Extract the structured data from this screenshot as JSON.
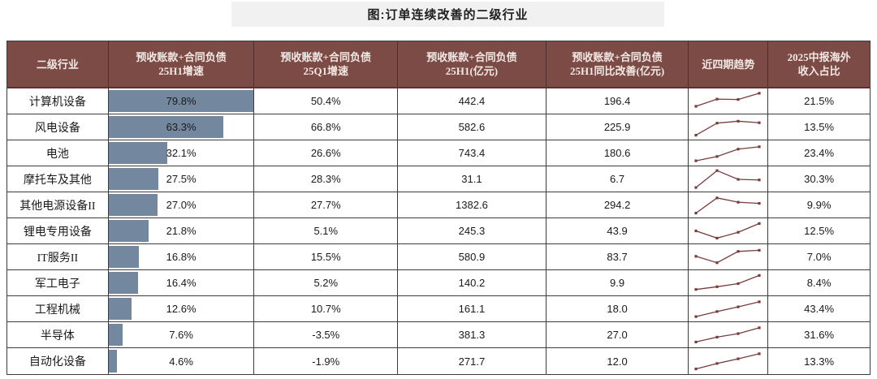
{
  "title": "图:订单连续改善的二级行业",
  "colors": {
    "header_bg": "#7d4b46",
    "header_text": "#f2e8e4",
    "bar_fill": "#73879e",
    "sparkline": "#793c3c",
    "title_bg": "#f1f1f1",
    "border": "#3c3c3c"
  },
  "table": {
    "bar_max": 79.8,
    "columns": [
      {
        "lines": [
          "二级行业"
        ]
      },
      {
        "lines": [
          "预收账款+合同负债",
          "25H1增速"
        ]
      },
      {
        "lines": [
          "预收账款+合同负债",
          "25Q1增速"
        ]
      },
      {
        "lines": [
          "预收账款+合同负债",
          "25H1(亿元)"
        ]
      },
      {
        "lines": [
          "预收账款+合同负债",
          "25H1同比改善(亿元)"
        ]
      },
      {
        "lines": [
          "近四期趋势"
        ]
      },
      {
        "lines": [
          "2025中报海外",
          "收入占比"
        ]
      }
    ],
    "rows": [
      {
        "industry": "计算机设备",
        "h1_growth": "79.8%",
        "h1_growth_value": 79.8,
        "q1_growth": "50.4%",
        "h1_amount": "442.4",
        "improvement": "196.4",
        "overseas": "21.5%",
        "trend": [
          0.25,
          0.62,
          0.6,
          0.92
        ]
      },
      {
        "industry": "风电设备",
        "h1_growth": "63.3%",
        "h1_growth_value": 63.3,
        "q1_growth": "66.8%",
        "h1_amount": "582.6",
        "improvement": "225.9",
        "overseas": "13.5%",
        "trend": [
          0.1,
          0.72,
          0.82,
          0.74
        ]
      },
      {
        "industry": "电池",
        "h1_growth": "32.1%",
        "h1_growth_value": 32.1,
        "q1_growth": "26.6%",
        "h1_amount": "743.4",
        "improvement": "180.6",
        "overseas": "23.4%",
        "trend": [
          0.12,
          0.34,
          0.72,
          0.84
        ]
      },
      {
        "industry": "摩托车及其他",
        "h1_growth": "27.5%",
        "h1_growth_value": 27.5,
        "q1_growth": "28.3%",
        "h1_amount": "31.1",
        "improvement": "6.7",
        "overseas": "30.3%",
        "trend": [
          0.08,
          0.95,
          0.5,
          0.47
        ]
      },
      {
        "industry": "其他电源设备II",
        "h1_growth": "27.0%",
        "h1_growth_value": 27.0,
        "q1_growth": "27.7%",
        "h1_amount": "1382.6",
        "improvement": "294.2",
        "overseas": "9.9%",
        "trend": [
          0.1,
          0.88,
          0.66,
          0.6
        ]
      },
      {
        "industry": "锂电专用设备",
        "h1_growth": "21.8%",
        "h1_growth_value": 21.8,
        "q1_growth": "5.1%",
        "h1_amount": "245.3",
        "improvement": "43.9",
        "overseas": "12.5%",
        "trend": [
          0.52,
          0.15,
          0.45,
          0.9
        ]
      },
      {
        "industry": "IT服务II",
        "h1_growth": "16.8%",
        "h1_growth_value": 16.8,
        "q1_growth": "15.5%",
        "h1_amount": "580.9",
        "improvement": "83.7",
        "overseas": "7.0%",
        "trend": [
          0.55,
          0.22,
          0.8,
          0.86
        ]
      },
      {
        "industry": "军工电子",
        "h1_growth": "16.4%",
        "h1_growth_value": 16.4,
        "q1_growth": "5.2%",
        "h1_amount": "140.2",
        "improvement": "9.9",
        "overseas": "8.4%",
        "trend": [
          0.18,
          0.32,
          0.48,
          0.9
        ]
      },
      {
        "industry": "工程机械",
        "h1_growth": "12.6%",
        "h1_growth_value": 12.6,
        "q1_growth": "10.7%",
        "h1_amount": "161.1",
        "improvement": "18.0",
        "overseas": "43.4%",
        "trend": [
          0.12,
          0.38,
          0.62,
          0.88
        ]
      },
      {
        "industry": "半导体",
        "h1_growth": "7.6%",
        "h1_growth_value": 7.6,
        "q1_growth": "-3.5%",
        "h1_amount": "381.3",
        "improvement": "27.0",
        "overseas": "31.6%",
        "trend": [
          0.15,
          0.4,
          0.58,
          0.88
        ]
      },
      {
        "industry": "自动化设备",
        "h1_growth": "4.6%",
        "h1_growth_value": 4.6,
        "q1_growth": "-1.9%",
        "h1_amount": "271.7",
        "improvement": "12.0",
        "overseas": "13.3%",
        "trend": [
          0.1,
          0.38,
          0.62,
          0.88
        ]
      }
    ]
  },
  "chart_data": {
    "type": "table",
    "title": "图:订单连续改善的二级行业",
    "columns": [
      "二级行业",
      "预收账款+合同负债25H1增速",
      "预收账款+合同负债25Q1增速",
      "预收账款+合同负债25H1(亿元)",
      "预收账款+合同负债25H1同比改善(亿元)",
      "近四期趋势",
      "2025中报海外收入占比"
    ],
    "rows": [
      [
        "计算机设备",
        79.8,
        50.4,
        442.4,
        196.4,
        "上升",
        21.5
      ],
      [
        "风电设备",
        63.3,
        66.8,
        582.6,
        225.9,
        "上升后走平",
        13.5
      ],
      [
        "电池",
        32.1,
        26.6,
        743.4,
        180.6,
        "持续上升",
        23.4
      ],
      [
        "摩托车及其他",
        27.5,
        28.3,
        31.1,
        6.7,
        "冲高回落",
        30.3
      ],
      [
        "其他电源设备II",
        27.0,
        27.7,
        1382.6,
        294.2,
        "冲高回落",
        9.9
      ],
      [
        "锂电专用设备",
        21.8,
        5.1,
        245.3,
        43.9,
        "回落后回升",
        12.5
      ],
      [
        "IT服务II",
        16.8,
        15.5,
        580.9,
        83.7,
        "回落后回升",
        7.0
      ],
      [
        "军工电子",
        16.4,
        5.2,
        140.2,
        9.9,
        "持续上升",
        8.4
      ],
      [
        "工程机械",
        12.6,
        10.7,
        161.1,
        18.0,
        "持续上升",
        43.4
      ],
      [
        "半导体",
        7.6,
        -3.5,
        381.3,
        27.0,
        "持续上升",
        31.6
      ],
      [
        "自动化设备",
        4.6,
        -1.9,
        271.7,
        12.0,
        "持续上升",
        13.3
      ]
    ],
    "embedded_bar": {
      "column": "预收账款+合同负债25H1增速",
      "unit": "%",
      "bar_full_scale": 79.8
    },
    "sparkline": {
      "points_per_row": 4,
      "color": "#793c3c"
    }
  }
}
